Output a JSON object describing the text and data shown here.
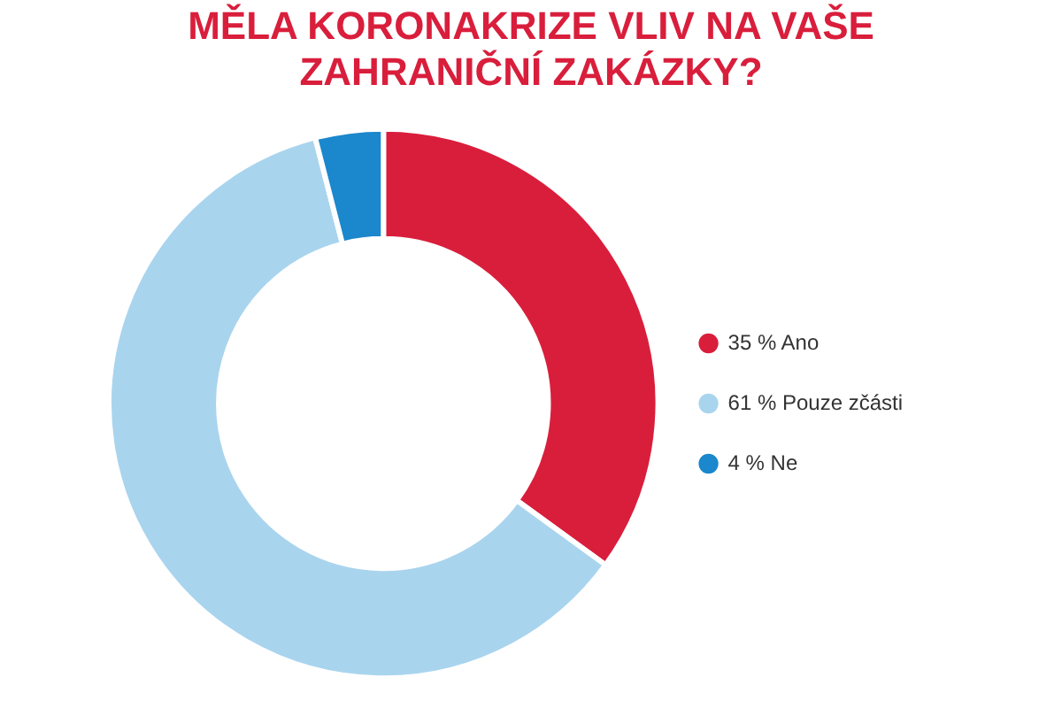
{
  "chart_data": {
    "type": "donut",
    "title": "MĚLA KORONAKRIZE VLIV NA VAŠE ZAHRANIČNÍ ZAKÁZKY?",
    "categories": [
      "35 % Ano",
      "61 % Pouze zčásti",
      "4 % Ne"
    ],
    "values": [
      35,
      61,
      4
    ],
    "colors": [
      "#d91e3c",
      "#a9d4ee",
      "#1b87cc"
    ],
    "legend": "right"
  }
}
